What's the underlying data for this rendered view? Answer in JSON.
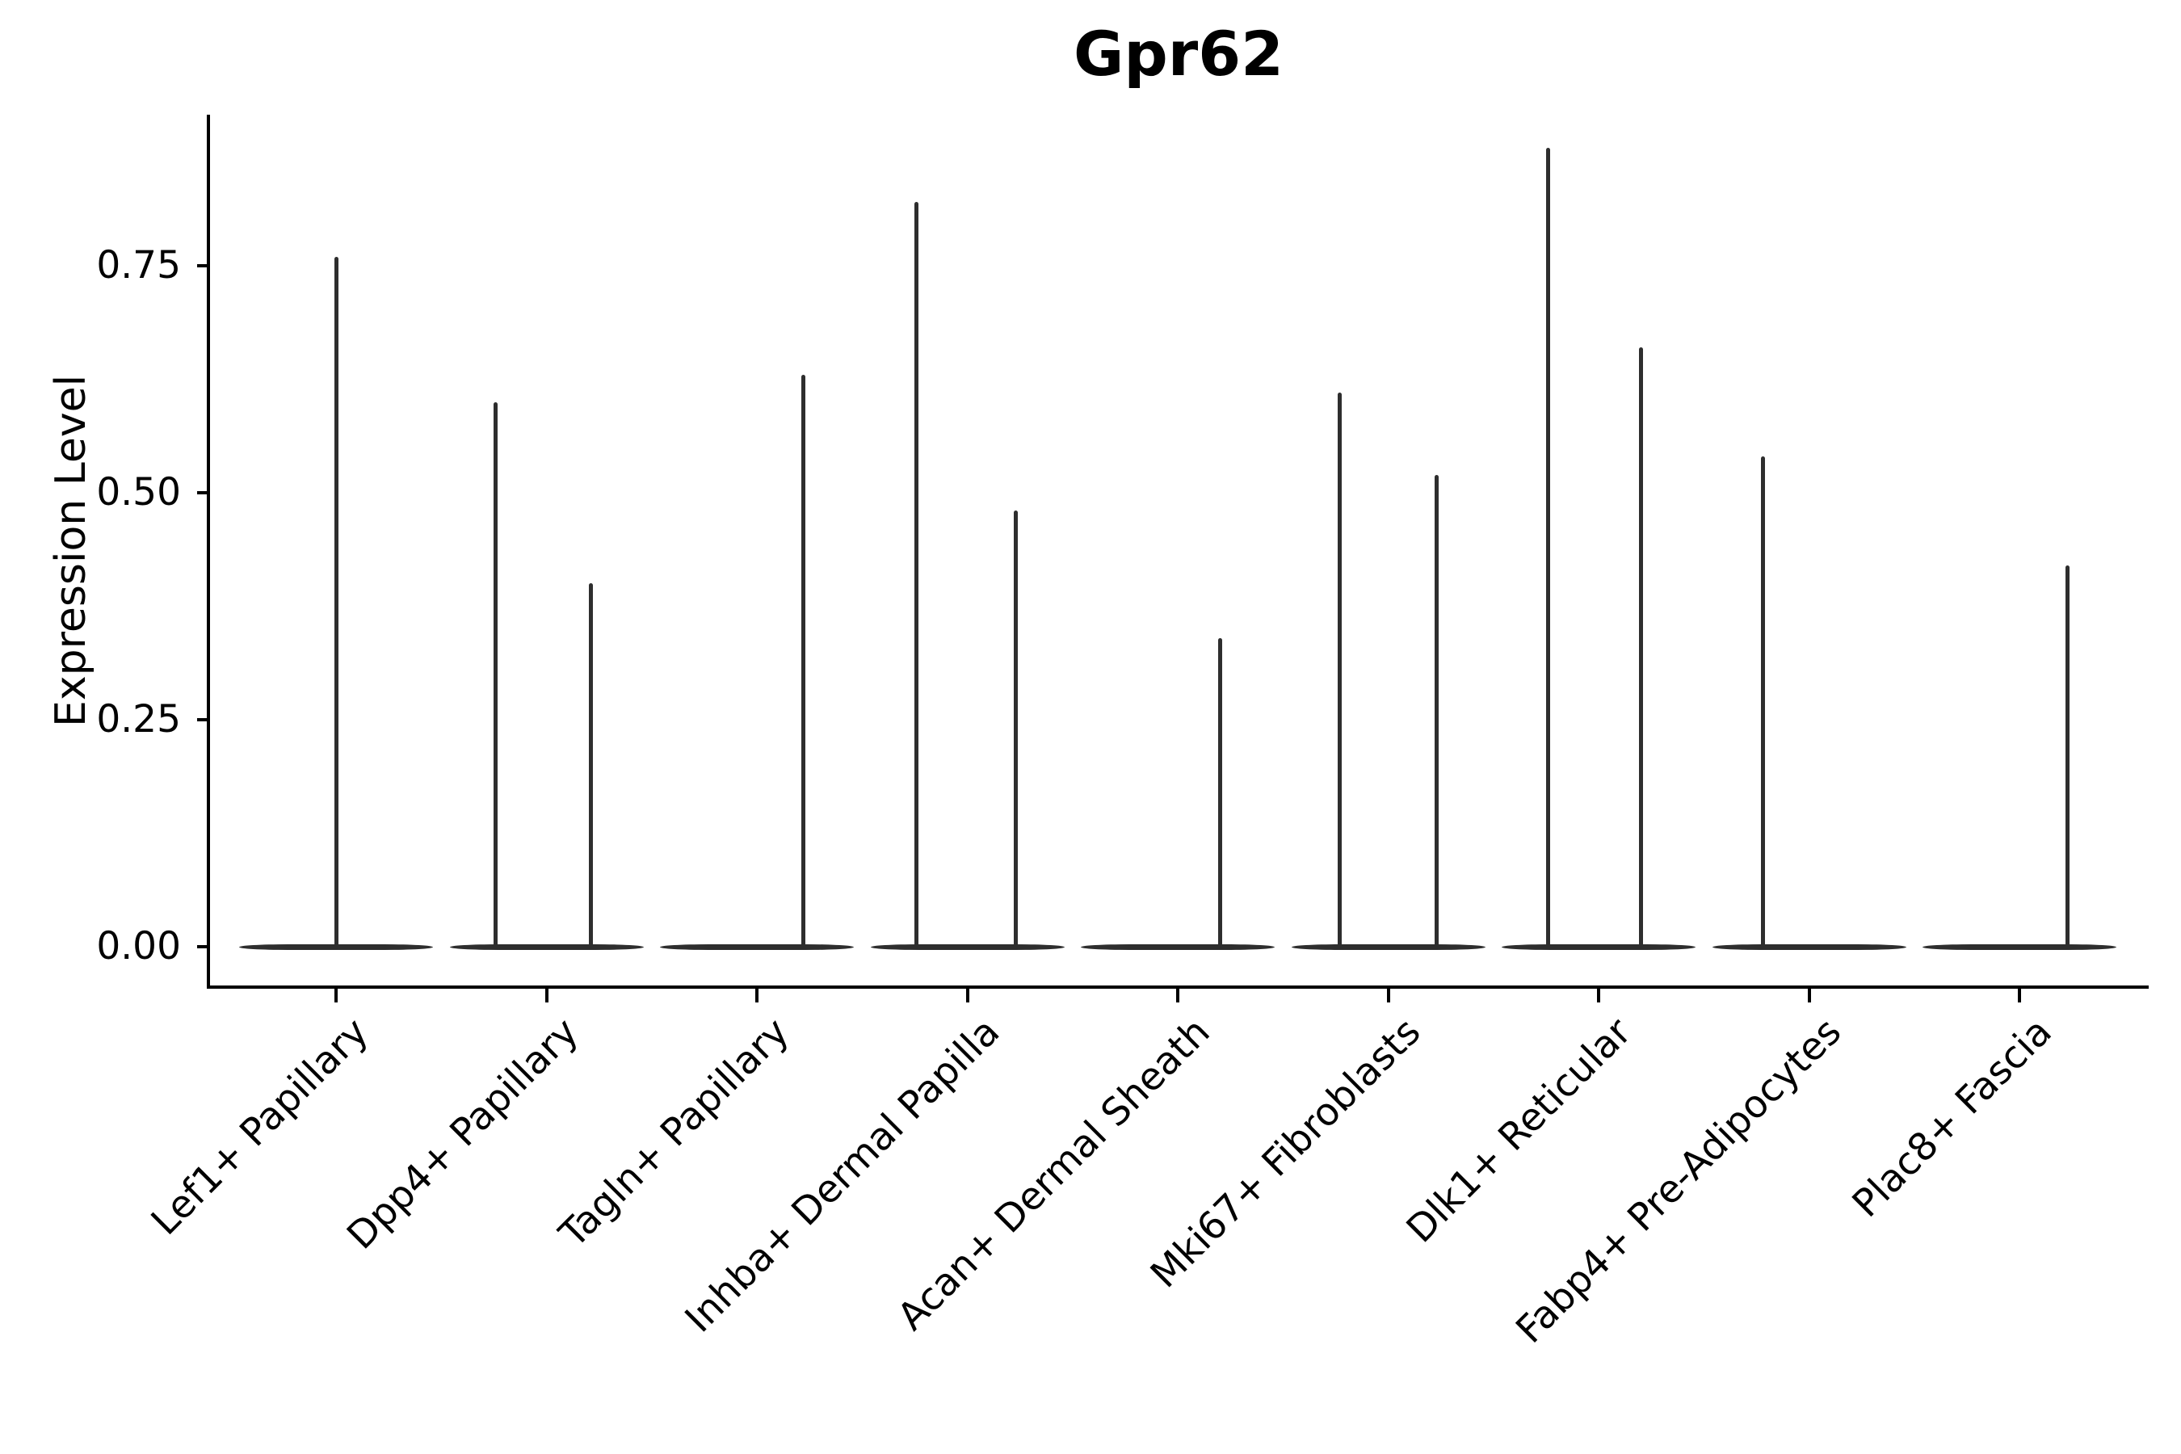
{
  "figure": {
    "title": "Gpr62"
  },
  "chart_data": {
    "type": "violin",
    "title": "Gpr62",
    "ylabel": "Expression Level",
    "xlabel": "",
    "grid": false,
    "legend": "none",
    "ylim": [
      -0.045,
      0.92
    ],
    "yticks": [
      {
        "value": 0.0,
        "label": "0.00"
      },
      {
        "value": 0.25,
        "label": "0.25"
      },
      {
        "value": 0.5,
        "label": "0.50"
      },
      {
        "value": 0.75,
        "label": "0.75"
      }
    ],
    "categories": [
      "Lef1+ Papillary",
      "Dpp4+ Papillary",
      "Tagln+ Papillary",
      "Inhba+ Dermal Papilla",
      "Acan+ Dermal Sheath",
      "Mki67+ Fibroblasts",
      "Dlk1+ Reticular",
      "Fabp4+ Pre-Adipocytes",
      "Plac8+ Fascia"
    ],
    "violins": [
      {
        "category": "Lef1+ Papillary",
        "baseline_value": 0.0,
        "spikes": [
          {
            "pos": 0.0,
            "value": 0.76
          }
        ]
      },
      {
        "category": "Dpp4+ Papillary",
        "baseline_value": 0.0,
        "spikes": [
          {
            "pos": -0.24,
            "value": 0.6
          },
          {
            "pos": 0.21,
            "value": 0.4
          }
        ]
      },
      {
        "category": "Tagln+ Papillary",
        "baseline_value": 0.0,
        "spikes": [
          {
            "pos": 0.22,
            "value": 0.63
          }
        ]
      },
      {
        "category": "Inhba+ Dermal Papilla",
        "baseline_value": 0.0,
        "spikes": [
          {
            "pos": -0.24,
            "value": 0.82
          },
          {
            "pos": 0.23,
            "value": 0.48
          }
        ]
      },
      {
        "category": "Acan+ Dermal Sheath",
        "baseline_value": 0.0,
        "spikes": [
          {
            "pos": 0.2,
            "value": 0.34
          }
        ]
      },
      {
        "category": "Mki67+ Fibroblasts",
        "baseline_value": 0.0,
        "spikes": [
          {
            "pos": -0.23,
            "value": 0.61
          },
          {
            "pos": 0.23,
            "value": 0.52
          }
        ]
      },
      {
        "category": "Dlk1+ Reticular",
        "baseline_value": 0.0,
        "spikes": [
          {
            "pos": -0.24,
            "value": 0.88
          },
          {
            "pos": 0.2,
            "value": 0.66
          }
        ]
      },
      {
        "category": "Fabp4+ Pre-Adipocytes",
        "baseline_value": 0.0,
        "spikes": [
          {
            "pos": -0.22,
            "value": 0.54
          }
        ]
      },
      {
        "category": "Plac8+ Fascia",
        "baseline_value": 0.0,
        "spikes": [
          {
            "pos": 0.23,
            "value": 0.42
          }
        ]
      }
    ],
    "colors": {
      "violin": "#2e2e2e",
      "axis": "#000000",
      "text": "#000000",
      "background": "#ffffff"
    }
  }
}
